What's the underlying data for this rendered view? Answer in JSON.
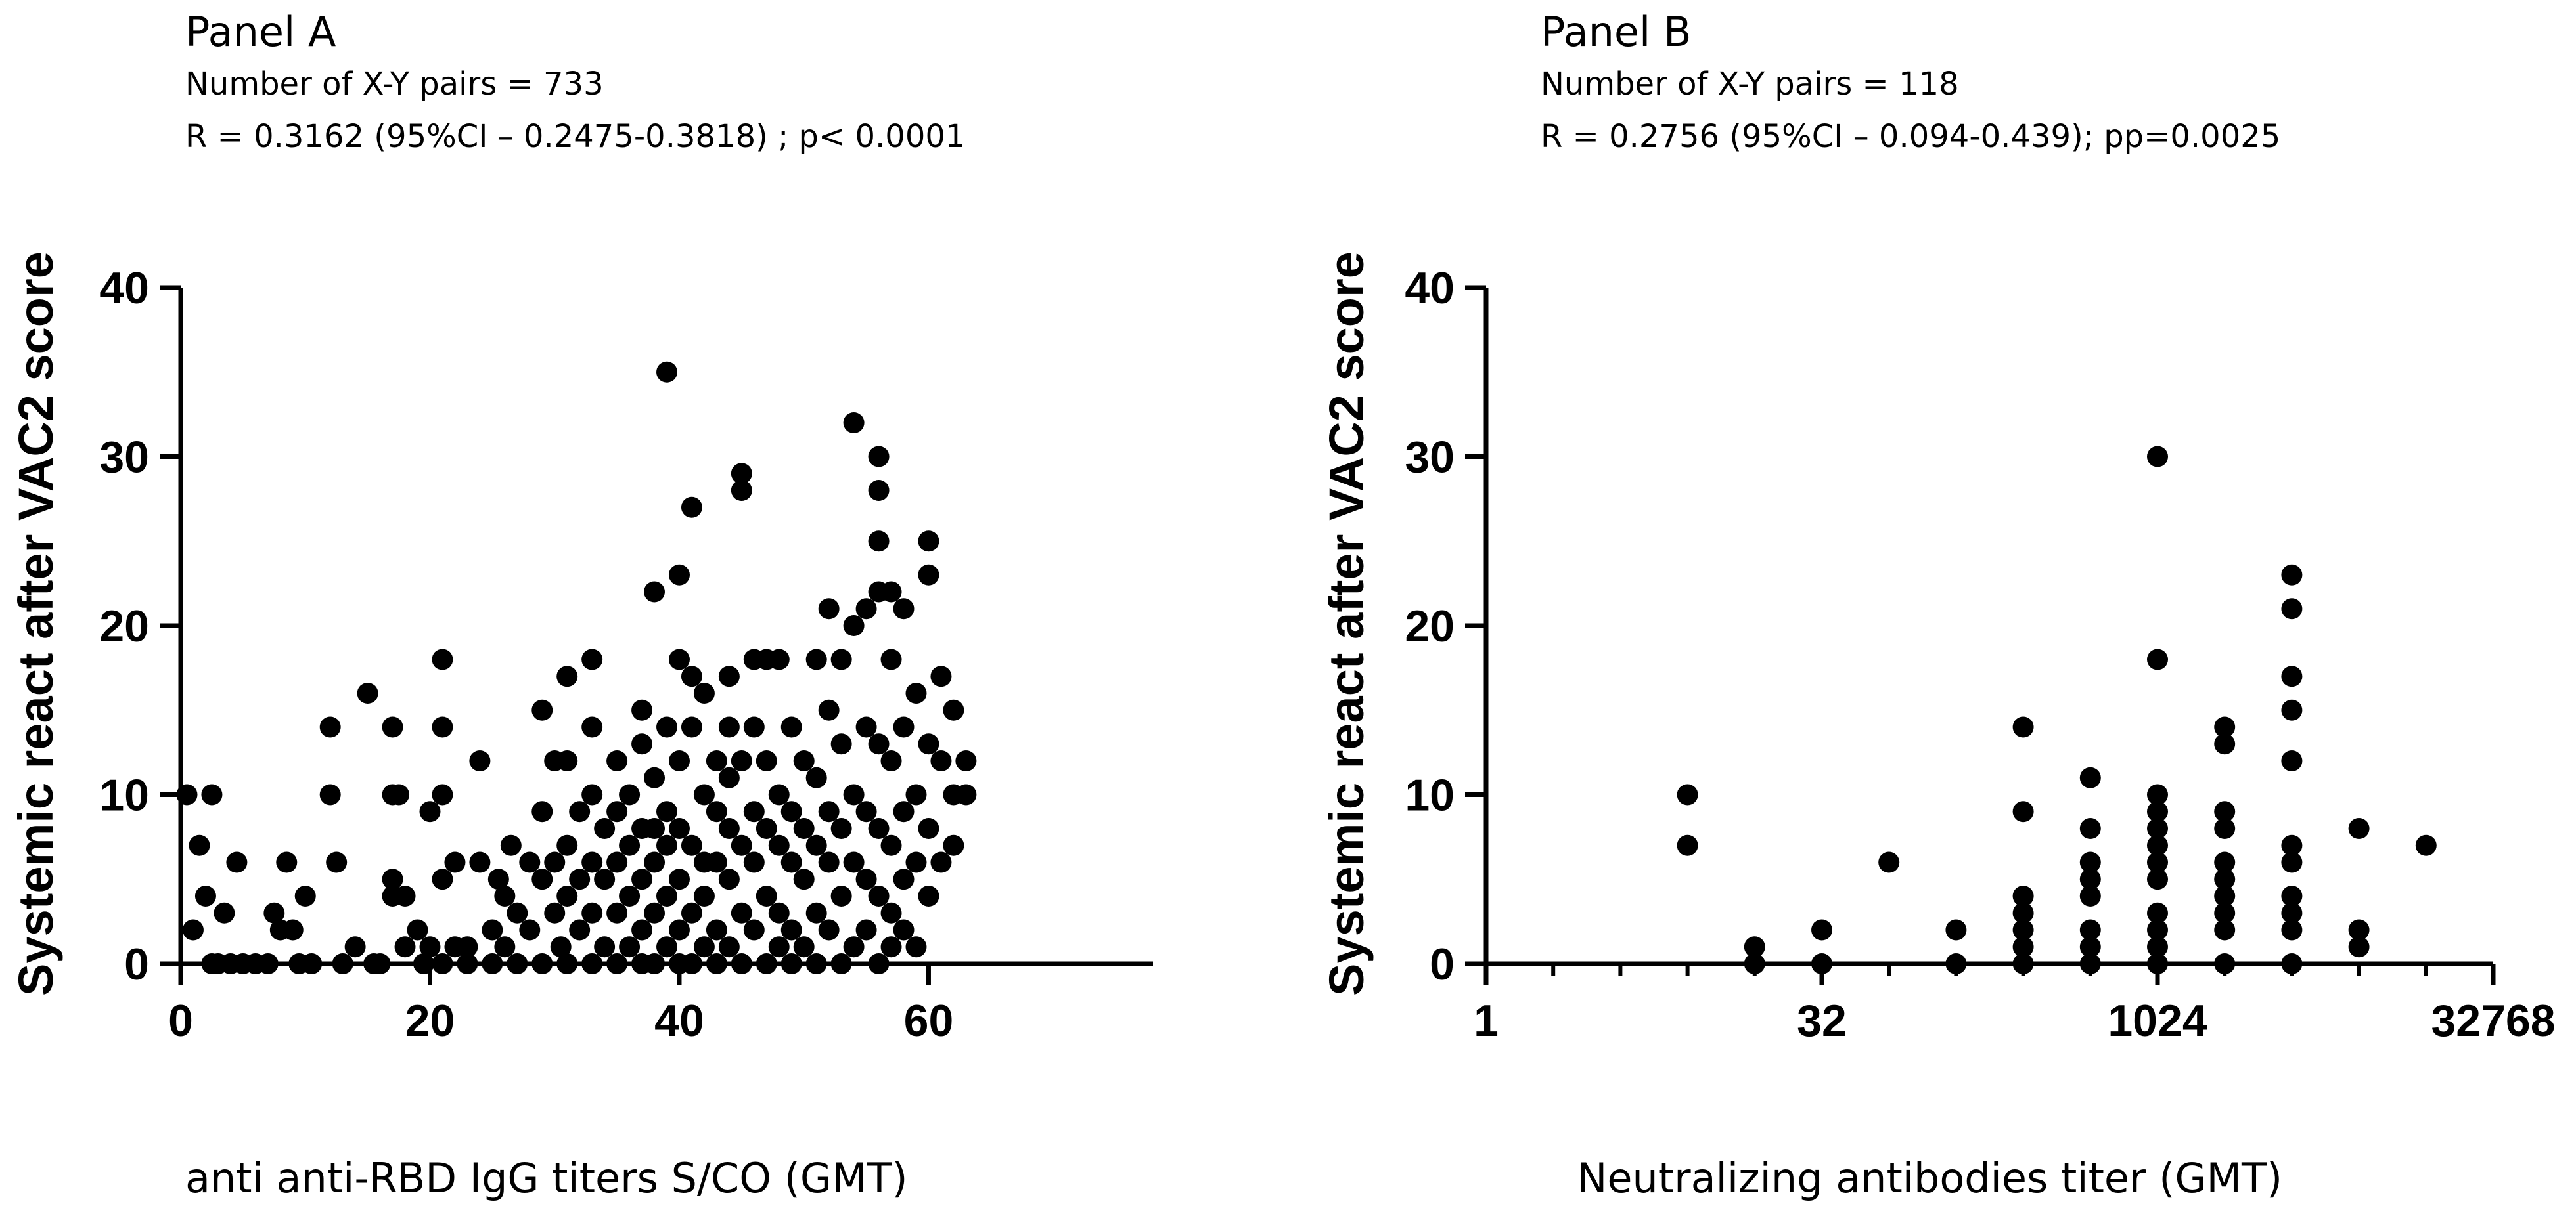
{
  "chart_data": [
    {
      "type": "scatter",
      "panel_title": "Panel A",
      "subtitle_lines": [
        "Number of X-Y pairs = 733",
        "R = 0.3162 (95%CI – 0.2475-0.3818) ; p< 0.0001"
      ],
      "xlabel": "anti anti-RBD IgG titers S/CO (GMT)",
      "ylabel": "Systemic react after VAC2 score",
      "xlim": [
        0,
        78
      ],
      "ylim": [
        0,
        40
      ],
      "xticks": [
        0,
        20,
        40,
        60
      ],
      "xtick_labels": [
        "0",
        "20",
        "40",
        "60"
      ],
      "yticks": [
        0,
        10,
        20,
        30,
        40
      ],
      "ytick_labels": [
        "0",
        "10",
        "20",
        "30",
        "40"
      ],
      "x_scale": "linear",
      "points": [
        [
          0.5,
          10
        ],
        [
          1,
          2
        ],
        [
          1.5,
          7
        ],
        [
          2,
          4
        ],
        [
          2.5,
          10
        ],
        [
          2.5,
          0
        ],
        [
          3,
          0
        ],
        [
          3.5,
          3
        ],
        [
          4,
          0
        ],
        [
          4.5,
          6
        ],
        [
          5,
          0
        ],
        [
          6,
          0
        ],
        [
          7,
          0
        ],
        [
          7.5,
          3
        ],
        [
          8,
          2
        ],
        [
          8.5,
          6
        ],
        [
          9,
          2
        ],
        [
          9.5,
          0
        ],
        [
          10,
          4
        ],
        [
          10.5,
          0
        ],
        [
          12,
          14
        ],
        [
          12,
          10
        ],
        [
          12.5,
          6
        ],
        [
          13,
          0
        ],
        [
          14,
          1
        ],
        [
          15,
          16
        ],
        [
          15.5,
          0
        ],
        [
          16,
          0
        ],
        [
          17,
          14
        ],
        [
          17,
          10
        ],
        [
          17,
          5
        ],
        [
          17,
          4
        ],
        [
          17.5,
          10
        ],
        [
          18,
          4
        ],
        [
          18,
          1
        ],
        [
          19,
          2
        ],
        [
          19.5,
          0
        ],
        [
          20,
          9
        ],
        [
          20,
          1
        ],
        [
          21,
          18
        ],
        [
          21,
          14
        ],
        [
          21,
          10
        ],
        [
          21,
          5
        ],
        [
          21,
          0
        ],
        [
          22,
          6
        ],
        [
          22,
          1
        ],
        [
          23,
          1
        ],
        [
          23,
          0
        ],
        [
          24,
          12
        ],
        [
          24,
          6
        ],
        [
          25,
          0
        ],
        [
          25,
          2
        ],
        [
          25.5,
          5
        ],
        [
          26,
          4
        ],
        [
          26,
          1
        ],
        [
          26.5,
          7
        ],
        [
          27,
          3
        ],
        [
          27,
          0
        ],
        [
          28,
          6
        ],
        [
          28,
          2
        ],
        [
          29,
          15
        ],
        [
          29,
          9
        ],
        [
          29,
          5
        ],
        [
          29,
          0
        ],
        [
          30,
          12
        ],
        [
          30,
          6
        ],
        [
          30,
          3
        ],
        [
          30.5,
          1
        ],
        [
          31,
          17
        ],
        [
          31,
          12
        ],
        [
          31,
          7
        ],
        [
          31,
          4
        ],
        [
          31,
          0
        ],
        [
          32,
          9
        ],
        [
          32,
          5
        ],
        [
          32,
          2
        ],
        [
          33,
          18
        ],
        [
          33,
          14
        ],
        [
          33,
          10
        ],
        [
          33,
          6
        ],
        [
          33,
          3
        ],
        [
          33,
          0
        ],
        [
          34,
          8
        ],
        [
          34,
          5
        ],
        [
          34,
          1
        ],
        [
          35,
          12
        ],
        [
          35,
          9
        ],
        [
          35,
          6
        ],
        [
          35,
          3
        ],
        [
          35,
          0
        ],
        [
          36,
          10
        ],
        [
          36,
          7
        ],
        [
          36,
          4
        ],
        [
          36,
          1
        ],
        [
          37,
          15
        ],
        [
          37,
          13
        ],
        [
          37,
          8
        ],
        [
          37,
          5
        ],
        [
          37,
          2
        ],
        [
          37,
          0
        ],
        [
          38,
          22
        ],
        [
          38,
          11
        ],
        [
          38,
          8
        ],
        [
          38,
          6
        ],
        [
          38,
          3
        ],
        [
          38,
          0
        ],
        [
          39,
          35
        ],
        [
          39,
          14
        ],
        [
          39,
          9
        ],
        [
          39,
          7
        ],
        [
          39,
          4
        ],
        [
          39,
          1
        ],
        [
          40,
          23
        ],
        [
          40,
          18
        ],
        [
          40,
          12
        ],
        [
          40,
          8
        ],
        [
          40,
          5
        ],
        [
          40,
          2
        ],
        [
          40,
          0
        ],
        [
          41,
          27
        ],
        [
          41,
          17
        ],
        [
          41,
          14
        ],
        [
          41,
          7
        ],
        [
          41,
          3
        ],
        [
          41,
          0
        ],
        [
          42,
          16
        ],
        [
          42,
          10
        ],
        [
          42,
          6
        ],
        [
          42,
          4
        ],
        [
          42,
          1
        ],
        [
          43,
          12
        ],
        [
          43,
          9
        ],
        [
          43,
          6
        ],
        [
          43,
          2
        ],
        [
          43,
          0
        ],
        [
          44,
          17
        ],
        [
          44,
          14
        ],
        [
          44,
          11
        ],
        [
          44,
          8
        ],
        [
          44,
          5
        ],
        [
          44,
          1
        ],
        [
          45,
          29
        ],
        [
          45,
          28
        ],
        [
          45,
          12
        ],
        [
          45,
          7
        ],
        [
          45,
          3
        ],
        [
          45,
          0
        ],
        [
          46,
          18
        ],
        [
          46,
          14
        ],
        [
          46,
          9
        ],
        [
          46,
          6
        ],
        [
          46,
          2
        ],
        [
          47,
          18
        ],
        [
          47,
          12
        ],
        [
          47,
          8
        ],
        [
          47,
          4
        ],
        [
          47,
          0
        ],
        [
          48,
          18
        ],
        [
          48,
          10
        ],
        [
          48,
          7
        ],
        [
          48,
          3
        ],
        [
          48,
          1
        ],
        [
          49,
          14
        ],
        [
          49,
          9
        ],
        [
          49,
          6
        ],
        [
          49,
          2
        ],
        [
          49,
          0
        ],
        [
          50,
          12
        ],
        [
          50,
          8
        ],
        [
          50,
          5
        ],
        [
          50,
          1
        ],
        [
          51,
          18
        ],
        [
          51,
          11
        ],
        [
          51,
          7
        ],
        [
          51,
          3
        ],
        [
          51,
          0
        ],
        [
          52,
          21
        ],
        [
          52,
          15
        ],
        [
          52,
          9
        ],
        [
          52,
          6
        ],
        [
          52,
          2
        ],
        [
          53,
          18
        ],
        [
          53,
          13
        ],
        [
          53,
          8
        ],
        [
          53,
          4
        ],
        [
          53,
          0
        ],
        [
          54,
          32
        ],
        [
          54,
          20
        ],
        [
          54,
          10
        ],
        [
          54,
          6
        ],
        [
          54,
          1
        ],
        [
          55,
          21
        ],
        [
          55,
          14
        ],
        [
          55,
          9
        ],
        [
          55,
          5
        ],
        [
          55,
          2
        ],
        [
          56,
          30
        ],
        [
          56,
          28
        ],
        [
          56,
          25
        ],
        [
          56,
          22
        ],
        [
          56,
          13
        ],
        [
          56,
          8
        ],
        [
          56,
          4
        ],
        [
          56,
          0
        ],
        [
          57,
          22
        ],
        [
          57,
          18
        ],
        [
          57,
          12
        ],
        [
          57,
          7
        ],
        [
          57,
          3
        ],
        [
          57,
          1
        ],
        [
          58,
          21
        ],
        [
          58,
          14
        ],
        [
          58,
          9
        ],
        [
          58,
          5
        ],
        [
          58,
          2
        ],
        [
          59,
          16
        ],
        [
          59,
          10
        ],
        [
          59,
          6
        ],
        [
          59,
          1
        ],
        [
          60,
          25
        ],
        [
          60,
          23
        ],
        [
          60,
          13
        ],
        [
          60,
          8
        ],
        [
          60,
          4
        ],
        [
          61,
          17
        ],
        [
          61,
          12
        ],
        [
          61,
          6
        ],
        [
          62,
          15
        ],
        [
          62,
          10
        ],
        [
          62,
          7
        ],
        [
          63,
          12
        ],
        [
          63,
          10
        ]
      ]
    },
    {
      "type": "scatter",
      "panel_title": "Panel B",
      "subtitle_lines": [
        "Number of X-Y pairs = 118",
        "R = 0.2756 (95%CI – 0.094-0.439); pp=0.0025"
      ],
      "xlabel": "Neutralizing antibodies titer (GMT)",
      "ylabel": "Systemic react after VAC2 score",
      "x_scale": "log2",
      "xlim": [
        1,
        32768
      ],
      "ylim": [
        0,
        40
      ],
      "xticks": [
        1,
        32,
        1024,
        32768
      ],
      "xtick_labels": [
        "1",
        "32",
        "1024",
        "32768"
      ],
      "yticks": [
        0,
        10,
        20,
        30,
        40
      ],
      "ytick_labels": [
        "0",
        "10",
        "20",
        "30",
        "40"
      ],
      "points": [
        [
          8,
          10
        ],
        [
          8,
          7
        ],
        [
          16,
          1
        ],
        [
          16,
          0
        ],
        [
          32,
          2
        ],
        [
          32,
          0
        ],
        [
          64,
          6
        ],
        [
          128,
          2
        ],
        [
          128,
          0
        ],
        [
          256,
          14
        ],
        [
          256,
          9
        ],
        [
          256,
          4
        ],
        [
          256,
          3
        ],
        [
          256,
          2
        ],
        [
          256,
          1
        ],
        [
          256,
          0
        ],
        [
          512,
          11
        ],
        [
          512,
          8
        ],
        [
          512,
          6
        ],
        [
          512,
          5
        ],
        [
          512,
          4
        ],
        [
          512,
          2
        ],
        [
          512,
          1
        ],
        [
          512,
          0
        ],
        [
          1024,
          30
        ],
        [
          1024,
          18
        ],
        [
          1024,
          10
        ],
        [
          1024,
          9
        ],
        [
          1024,
          8
        ],
        [
          1024,
          7
        ],
        [
          1024,
          6
        ],
        [
          1024,
          5
        ],
        [
          1024,
          3
        ],
        [
          1024,
          2
        ],
        [
          1024,
          1
        ],
        [
          1024,
          0
        ],
        [
          2048,
          14
        ],
        [
          2048,
          13
        ],
        [
          2048,
          9
        ],
        [
          2048,
          8
        ],
        [
          2048,
          6
        ],
        [
          2048,
          5
        ],
        [
          2048,
          4
        ],
        [
          2048,
          3
        ],
        [
          2048,
          2
        ],
        [
          2048,
          0
        ],
        [
          4096,
          23
        ],
        [
          4096,
          21
        ],
        [
          4096,
          17
        ],
        [
          4096,
          15
        ],
        [
          4096,
          12
        ],
        [
          4096,
          7
        ],
        [
          4096,
          6
        ],
        [
          4096,
          4
        ],
        [
          4096,
          3
        ],
        [
          4096,
          2
        ],
        [
          4096,
          0
        ],
        [
          8192,
          8
        ],
        [
          8192,
          2
        ],
        [
          8192,
          1
        ],
        [
          16384,
          7
        ]
      ]
    }
  ]
}
